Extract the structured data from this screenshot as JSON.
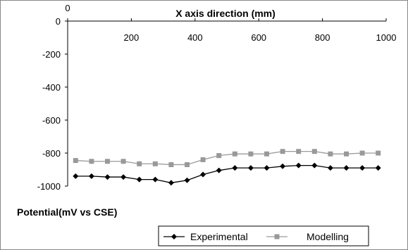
{
  "chart_data": {
    "type": "line",
    "xlabel": "X axis direction (mm)",
    "ylabel": "Potential(mV vs CSE)",
    "xlim": [
      0,
      1000
    ],
    "ylim": [
      -1000,
      0
    ],
    "x_ticks": [
      "0",
      "200",
      "400",
      "600",
      "800",
      "1000"
    ],
    "y_ticks": [
      "0",
      "-200",
      "-400",
      "-600",
      "-800",
      "-1000"
    ],
    "x_axis_position": "top",
    "grid": false,
    "legend_position": "bottom-right",
    "series": [
      {
        "name": "Experimental",
        "color": "#000000",
        "marker": "diamond",
        "x": [
          25,
          75,
          125,
          175,
          225,
          275,
          325,
          375,
          425,
          475,
          525,
          575,
          625,
          675,
          725,
          775,
          825,
          875,
          925,
          975
        ],
        "y": [
          -940,
          -940,
          -945,
          -945,
          -960,
          -960,
          -980,
          -965,
          -930,
          -905,
          -890,
          -890,
          -890,
          -880,
          -875,
          -875,
          -890,
          -890,
          -890,
          -890
        ]
      },
      {
        "name": "Modelling",
        "color": "#999999",
        "marker": "square",
        "x": [
          25,
          75,
          125,
          175,
          225,
          275,
          325,
          375,
          425,
          475,
          525,
          575,
          625,
          675,
          725,
          775,
          825,
          875,
          925,
          975
        ],
        "y": [
          -845,
          -850,
          -850,
          -850,
          -865,
          -865,
          -870,
          -870,
          -840,
          -815,
          -805,
          -805,
          -805,
          -790,
          -790,
          -790,
          -805,
          -805,
          -800,
          -800
        ]
      }
    ]
  }
}
